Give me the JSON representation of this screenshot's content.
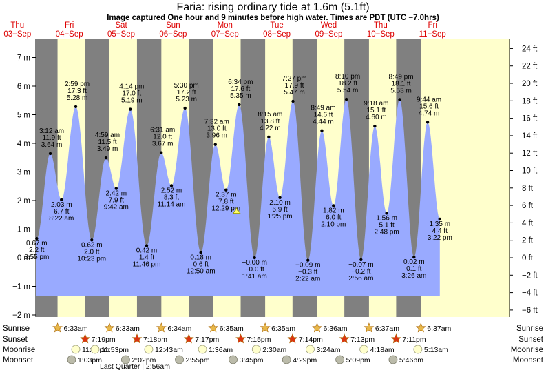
{
  "title": "Faria: rising  ordinary tide at 1.6m (5.1ft)",
  "subtitle": "Image captured One hour and 9 minutes before high water. Times are PDT (UTC −7.0hrs)",
  "colors": {
    "night": "#808080",
    "day": "#ffffcc",
    "tide_fill": "#99aaff",
    "day_label": "#dd0000",
    "sun_icon": "#e8b84a",
    "sunset_icon": "#dd3311",
    "moonrise_icon": "#ffffcc",
    "moonset_icon": "#bbbbaa"
  },
  "chart_data": {
    "type": "area",
    "xlabel": "",
    "ylabel_left_unit": "m",
    "ylabel_right_unit": "ft",
    "ylim_m": [
      -2.1,
      7.7
    ],
    "left_ticks": [
      "−2 m",
      "−1 m",
      "0 m",
      "1 m",
      "2 m",
      "3 m",
      "4 m",
      "5 m",
      "6 m",
      "7 m"
    ],
    "right_ticks": [
      "−6 ft",
      "−4 ft",
      "−2 ft",
      "0 ft",
      "2 ft",
      "4 ft",
      "6 ft",
      "8 ft",
      "10 ft",
      "12 ft",
      "14 ft",
      "16 ft",
      "18 ft",
      "20 ft",
      "22 ft",
      "24 ft"
    ],
    "x_range_hours": [
      0,
      197.5
    ],
    "days": [
      {
        "dow": "Thu",
        "date": "03−Sep"
      },
      {
        "dow": "Fri",
        "date": "04−Sep"
      },
      {
        "dow": "Sat",
        "date": "05−Sep"
      },
      {
        "dow": "Sun",
        "date": "06−Sep"
      },
      {
        "dow": "Mon",
        "date": "07−Sep"
      },
      {
        "dow": "Tue",
        "date": "08−Sep"
      },
      {
        "dow": "Wed",
        "date": "09−Sep"
      },
      {
        "dow": "Thu",
        "date": "10−Sep"
      },
      {
        "dow": "Fri",
        "date": "11−Sep"
      }
    ],
    "daylight": [
      {
        "sunrise": "6:33am",
        "sunset": "7:19pm"
      },
      {
        "sunrise": "6:33am",
        "sunset": "7:18pm"
      },
      {
        "sunrise": "6:34am",
        "sunset": "7:17pm"
      },
      {
        "sunrise": "6:35am",
        "sunset": "7:15pm"
      },
      {
        "sunrise": "6:35am",
        "sunset": "7:14pm"
      },
      {
        "sunrise": "6:36am",
        "sunset": "7:13pm"
      },
      {
        "sunrise": "6:37am",
        "sunset": "7:11pm"
      },
      {
        "sunrise": "6:37am",
        "sunset": ""
      }
    ],
    "tide_events": [
      {
        "time": "8:55 pm",
        "m": 0.67,
        "ft": "2.2 ft",
        "type": "low"
      },
      {
        "time": "3:12 am",
        "m": 3.64,
        "ft": "11.9 ft",
        "type": "high"
      },
      {
        "time": "8:22 am",
        "m": 2.03,
        "ft": "6.7 ft",
        "type": "low"
      },
      {
        "time": "2:59 pm",
        "m": 5.28,
        "ft": "17.3 ft",
        "type": "high"
      },
      {
        "time": "10:23 pm",
        "m": 0.62,
        "ft": "2.0 ft",
        "type": "low"
      },
      {
        "time": "4:59 am",
        "m": 3.49,
        "ft": "11.5 ft",
        "type": "high"
      },
      {
        "time": "9:42 am",
        "m": 2.42,
        "ft": "7.9 ft",
        "type": "low"
      },
      {
        "time": "4:14 pm",
        "m": 5.19,
        "ft": "17.0 ft",
        "type": "high"
      },
      {
        "time": "11:46 pm",
        "m": 0.42,
        "ft": "1.4 ft",
        "type": "low"
      },
      {
        "time": "6:31 am",
        "m": 3.67,
        "ft": "12.0 ft",
        "type": "high"
      },
      {
        "time": "11:14 am",
        "m": 2.52,
        "ft": "8.3 ft",
        "type": "low"
      },
      {
        "time": "5:30 pm",
        "m": 5.23,
        "ft": "17.2 ft",
        "type": "high"
      },
      {
        "time": "12:50 am",
        "m": 0.18,
        "ft": "0.6 ft",
        "type": "low"
      },
      {
        "time": "7:32 am",
        "m": 3.96,
        "ft": "13.0 ft",
        "type": "high"
      },
      {
        "time": "12:29 pm",
        "m": 2.37,
        "ft": "7.8 ft",
        "type": "low"
      },
      {
        "time": "6:34 pm",
        "m": 5.35,
        "ft": "17.6 ft",
        "type": "high"
      },
      {
        "time": "1:41 am",
        "m": -0.0,
        "ft": "−0.0 ft",
        "mlabel": "−0.00 m",
        "type": "low"
      },
      {
        "time": "8:15 am",
        "m": 4.22,
        "ft": "13.8 ft",
        "type": "high"
      },
      {
        "time": "1:25 pm",
        "m": 2.1,
        "ft": "6.9 ft",
        "type": "low"
      },
      {
        "time": "7:27 pm",
        "m": 5.47,
        "ft": "17.9 ft",
        "type": "high"
      },
      {
        "time": "2:22 am",
        "m": -0.09,
        "ft": "−0.3 ft",
        "mlabel": "−0.09 m",
        "type": "low"
      },
      {
        "time": "8:49 am",
        "m": 4.44,
        "ft": "14.6 ft",
        "type": "high"
      },
      {
        "time": "2:10 pm",
        "m": 1.82,
        "ft": "6.0 ft",
        "type": "low"
      },
      {
        "time": "8:10 pm",
        "m": 5.54,
        "ft": "18.2 ft",
        "type": "high"
      },
      {
        "time": "2:56 am",
        "m": -0.07,
        "ft": "−0.2 ft",
        "mlabel": "−0.07 m",
        "type": "low"
      },
      {
        "time": "9:18 am",
        "m": 4.6,
        "ft": "15.1 ft",
        "type": "high"
      },
      {
        "time": "2:48 pm",
        "m": 1.56,
        "ft": "5.1 ft",
        "type": "low"
      },
      {
        "time": "8:49 pm",
        "m": 5.53,
        "ft": "18.1 ft",
        "type": "high"
      },
      {
        "time": "3:26 am",
        "m": 0.02,
        "ft": "0.1 ft",
        "type": "low"
      },
      {
        "time": "9:44 am",
        "m": 4.74,
        "ft": "15.6 ft",
        "type": "high"
      },
      {
        "time": "3:22 pm",
        "m": 1.35,
        "ft": "4.4 ft",
        "type": "low"
      }
    ],
    "current_marker_m": 1.6,
    "legend_rows": [
      "Sunrise",
      "Sunset",
      "Moonrise",
      "Moonset"
    ],
    "moonrise": [
      "11:05pm",
      "11:53pm",
      "12:43am",
      "1:36am",
      "2:30am",
      "3:24am",
      "4:18am",
      "5:13am"
    ],
    "moonset": [
      "1:03pm",
      "2:02pm",
      "2:55pm",
      "3:45pm",
      "4:29pm",
      "5:09pm",
      "5:46pm"
    ],
    "moon_phase_note": "Last Quarter | 2:56am"
  }
}
